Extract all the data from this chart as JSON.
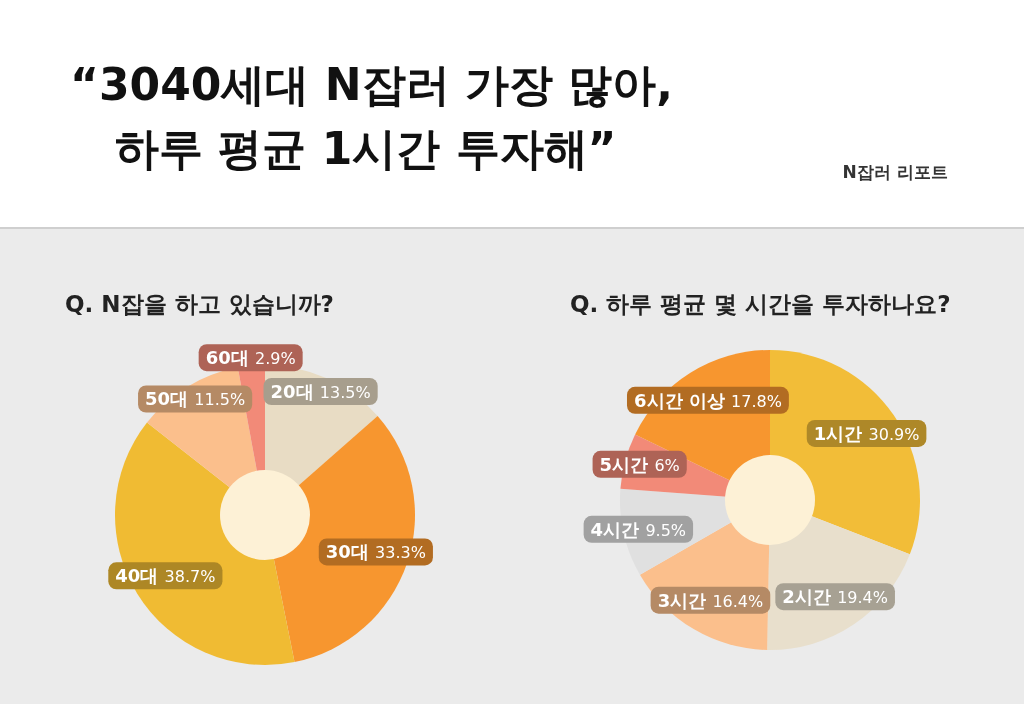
{
  "chart_data": [
    {
      "type": "other",
      "title": "“3040세대 N잡러 가장 많아, 하루 평균 1시간 투자해”",
      "annotations": [
        "N잡러 리포트"
      ]
    },
    {
      "type": "donut",
      "title": "Q. N잡을 하고 있습니까?",
      "categories": [
        "20대",
        "30대",
        "40대",
        "50대",
        "60대"
      ],
      "values": [
        13.5,
        33.3,
        38.7,
        11.5,
        2.9
      ],
      "value_labels": [
        "13.5%",
        "33.3%",
        "38.7%",
        "11.5%",
        "2.9%"
      ],
      "colors": [
        "#e8dcc4",
        "#f7962f",
        "#f0bb33",
        "#fbbf8c",
        "#f28a78"
      ]
    },
    {
      "type": "donut",
      "title": "Q. 하루 평균 몇 시간을 투자하나요?",
      "categories": [
        "1시간",
        "2시간",
        "3시간",
        "4시간",
        "5시간",
        "6시간 이상"
      ],
      "values": [
        30.9,
        19.4,
        16.4,
        9.5,
        6,
        17.8
      ],
      "value_labels": [
        "30.9%",
        "19.4%",
        "16.4%",
        "9.5%",
        "6%",
        "17.8%"
      ],
      "colors": [
        "#f2bd38",
        "#e8dfcc",
        "#fbbf8c",
        "#e0e0e0",
        "#f28a78",
        "#f7962f"
      ]
    }
  ]
}
